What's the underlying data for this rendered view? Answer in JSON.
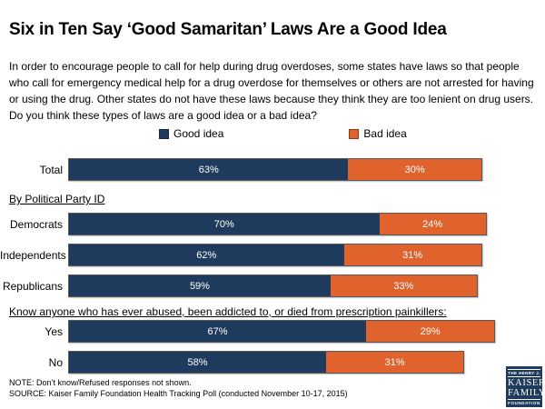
{
  "title": "Six in Ten Say ‘Good Samaritan’ Laws Are a Good Idea",
  "question_text": "In order to encourage people to call for help during drug overdoses, some states have laws so that people who call for emergency medical help for a drug overdose for themselves or others are not arrested for having or using the drug. Other states do not have these laws because they think they are too lenient on drug users. Do you think these types of laws are a good idea or a bad idea?",
  "legend": [
    {
      "label": "Good idea",
      "color": "#1E3A5C",
      "swatch_border": "#16293f"
    },
    {
      "label": "Bad idea",
      "color": "#E0622C",
      "swatch_border": "#8a3c14"
    }
  ],
  "chart_data": {
    "type": "bar",
    "orientation": "horizontal",
    "stacked": true,
    "unit": "%",
    "xlim": [
      0,
      100
    ],
    "grid": false,
    "legend_position": "top",
    "series_names": [
      "Good idea",
      "Bad idea"
    ],
    "groups": [
      {
        "header": "",
        "rows": [
          {
            "label": "Total",
            "values": [
              63,
              30
            ]
          }
        ]
      },
      {
        "header": "By Political Party ID",
        "rows": [
          {
            "label": "Democrats",
            "values": [
              70,
              24
            ]
          },
          {
            "label": "Independents",
            "values": [
              62,
              31
            ]
          },
          {
            "label": "Republicans",
            "values": [
              59,
              33
            ]
          }
        ]
      },
      {
        "header": "Know anyone who has ever abused, been addicted to, or died from prescription painkillers:",
        "rows": [
          {
            "label": "Yes",
            "values": [
              67,
              29
            ]
          },
          {
            "label": "No",
            "values": [
              58,
              31
            ]
          }
        ]
      }
    ]
  },
  "colors": {
    "good_idea": "#1E3A5C",
    "bad_idea": "#E0622C",
    "bar_border": "#595959",
    "logo_bg": "#1E3A5C"
  },
  "footer": {
    "note": "NOTE: Don’t know/Refused responses not shown.",
    "source": "SOURCE: Kaiser Family Foundation Health Tracking Poll (conducted November 10-17, 2015)"
  },
  "logo": {
    "line1": "THE HENRY J.",
    "line2": "KAISER",
    "line3": "FAMILY",
    "line4": "FOUNDATION"
  }
}
